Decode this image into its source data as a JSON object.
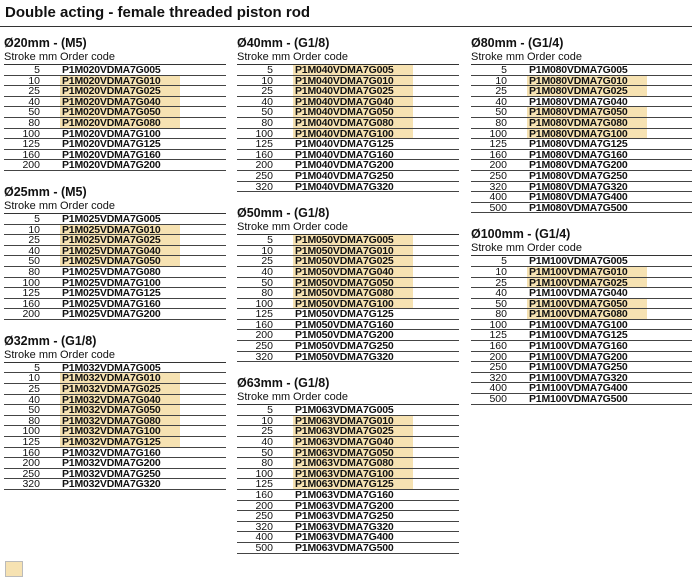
{
  "title": "Double acting - female threaded piston rod",
  "stroke_header": "Stroke mm",
  "code_header": "Order code",
  "columns": [
    {
      "sections": [
        {
          "heading": "Ø20mm - (M5)",
          "rows": [
            {
              "stroke": "5",
              "code": "P1M020VDMA7G005",
              "highlight": false
            },
            {
              "stroke": "10",
              "code": "P1M020VDMA7G010",
              "highlight": true
            },
            {
              "stroke": "25",
              "code": "P1M020VDMA7G025",
              "highlight": true
            },
            {
              "stroke": "40",
              "code": "P1M020VDMA7G040",
              "highlight": true
            },
            {
              "stroke": "50",
              "code": "P1M020VDMA7G050",
              "highlight": true
            },
            {
              "stroke": "80",
              "code": "P1M020VDMA7G080",
              "highlight": true
            },
            {
              "stroke": "100",
              "code": "P1M020VDMA7G100",
              "highlight": false
            },
            {
              "stroke": "125",
              "code": "P1M020VDMA7G125",
              "highlight": false
            },
            {
              "stroke": "160",
              "code": "P1M020VDMA7G160",
              "highlight": false
            },
            {
              "stroke": "200",
              "code": "P1M020VDMA7G200",
              "highlight": false
            }
          ]
        },
        {
          "heading": "Ø25mm - (M5)",
          "rows": [
            {
              "stroke": "5",
              "code": "P1M025VDMA7G005",
              "highlight": false
            },
            {
              "stroke": "10",
              "code": "P1M025VDMA7G010",
              "highlight": true
            },
            {
              "stroke": "25",
              "code": "P1M025VDMA7G025",
              "highlight": true
            },
            {
              "stroke": "40",
              "code": "P1M025VDMA7G040",
              "highlight": true
            },
            {
              "stroke": "50",
              "code": "P1M025VDMA7G050",
              "highlight": true
            },
            {
              "stroke": "80",
              "code": "P1M025VDMA7G080",
              "highlight": false
            },
            {
              "stroke": "100",
              "code": "P1M025VDMA7G100",
              "highlight": false
            },
            {
              "stroke": "125",
              "code": "P1M025VDMA7G125",
              "highlight": false
            },
            {
              "stroke": "160",
              "code": "P1M025VDMA7G160",
              "highlight": false
            },
            {
              "stroke": "200",
              "code": "P1M025VDMA7G200",
              "highlight": false
            }
          ]
        },
        {
          "heading": "Ø32mm - (G1/8)",
          "rows": [
            {
              "stroke": "5",
              "code": "P1M032VDMA7G005",
              "highlight": false
            },
            {
              "stroke": "10",
              "code": "P1M032VDMA7G010",
              "highlight": true
            },
            {
              "stroke": "25",
              "code": "P1M032VDMA7G025",
              "highlight": true
            },
            {
              "stroke": "40",
              "code": "P1M032VDMA7G040",
              "highlight": true
            },
            {
              "stroke": "50",
              "code": "P1M032VDMA7G050",
              "highlight": true
            },
            {
              "stroke": "80",
              "code": "P1M032VDMA7G080",
              "highlight": true
            },
            {
              "stroke": "100",
              "code": "P1M032VDMA7G100",
              "highlight": true
            },
            {
              "stroke": "125",
              "code": "P1M032VDMA7G125",
              "highlight": true
            },
            {
              "stroke": "160",
              "code": "P1M032VDMA7G160",
              "highlight": false
            },
            {
              "stroke": "200",
              "code": "P1M032VDMA7G200",
              "highlight": false
            },
            {
              "stroke": "250",
              "code": "P1M032VDMA7G250",
              "highlight": false
            },
            {
              "stroke": "320",
              "code": "P1M032VDMA7G320",
              "highlight": false
            }
          ]
        }
      ]
    },
    {
      "sections": [
        {
          "heading": "Ø40mm - (G1/8)",
          "rows": [
            {
              "stroke": "5",
              "code": "P1M040VDMA7G005",
              "highlight": true
            },
            {
              "stroke": "10",
              "code": "P1M040VDMA7G010",
              "highlight": true
            },
            {
              "stroke": "25",
              "code": "P1M040VDMA7G025",
              "highlight": true
            },
            {
              "stroke": "40",
              "code": "P1M040VDMA7G040",
              "highlight": true
            },
            {
              "stroke": "50",
              "code": "P1M040VDMA7G050",
              "highlight": true
            },
            {
              "stroke": "80",
              "code": "P1M040VDMA7G080",
              "highlight": true
            },
            {
              "stroke": "100",
              "code": "P1M040VDMA7G100",
              "highlight": true
            },
            {
              "stroke": "125",
              "code": "P1M040VDMA7G125",
              "highlight": false
            },
            {
              "stroke": "160",
              "code": "P1M040VDMA7G160",
              "highlight": false
            },
            {
              "stroke": "200",
              "code": "P1M040VDMA7G200",
              "highlight": false
            },
            {
              "stroke": "250",
              "code": "P1M040VDMA7G250",
              "highlight": false
            },
            {
              "stroke": "320",
              "code": "P1M040VDMA7G320",
              "highlight": false
            }
          ]
        },
        {
          "heading": "Ø50mm - (G1/8)",
          "rows": [
            {
              "stroke": "5",
              "code": "P1M050VDMA7G005",
              "highlight": true
            },
            {
              "stroke": "10",
              "code": "P1M050VDMA7G010",
              "highlight": true
            },
            {
              "stroke": "25",
              "code": "P1M050VDMA7G025",
              "highlight": true
            },
            {
              "stroke": "40",
              "code": "P1M050VDMA7G040",
              "highlight": true
            },
            {
              "stroke": "50",
              "code": "P1M050VDMA7G050",
              "highlight": true
            },
            {
              "stroke": "80",
              "code": "P1M050VDMA7G080",
              "highlight": true
            },
            {
              "stroke": "100",
              "code": "P1M050VDMA7G100",
              "highlight": true
            },
            {
              "stroke": "125",
              "code": "P1M050VDMA7G125",
              "highlight": false
            },
            {
              "stroke": "160",
              "code": "P1M050VDMA7G160",
              "highlight": false
            },
            {
              "stroke": "200",
              "code": "P1M050VDMA7G200",
              "highlight": false
            },
            {
              "stroke": "250",
              "code": "P1M050VDMA7G250",
              "highlight": false
            },
            {
              "stroke": "320",
              "code": "P1M050VDMA7G320",
              "highlight": false
            }
          ]
        },
        {
          "heading": "Ø63mm - (G1/8)",
          "rows": [
            {
              "stroke": "5",
              "code": "P1M063VDMA7G005",
              "highlight": false
            },
            {
              "stroke": "10",
              "code": "P1M063VDMA7G010",
              "highlight": true
            },
            {
              "stroke": "25",
              "code": "P1M063VDMA7G025",
              "highlight": true
            },
            {
              "stroke": "40",
              "code": "P1M063VDMA7G040",
              "highlight": true
            },
            {
              "stroke": "50",
              "code": "P1M063VDMA7G050",
              "highlight": true
            },
            {
              "stroke": "80",
              "code": "P1M063VDMA7G080",
              "highlight": true
            },
            {
              "stroke": "100",
              "code": "P1M063VDMA7G100",
              "highlight": true
            },
            {
              "stroke": "125",
              "code": "P1M063VDMA7G125",
              "highlight": true
            },
            {
              "stroke": "160",
              "code": "P1M063VDMA7G160",
              "highlight": false
            },
            {
              "stroke": "200",
              "code": "P1M063VDMA7G200",
              "highlight": false
            },
            {
              "stroke": "250",
              "code": "P1M063VDMA7G250",
              "highlight": false
            },
            {
              "stroke": "320",
              "code": "P1M063VDMA7G320",
              "highlight": false
            },
            {
              "stroke": "400",
              "code": "P1M063VDMA7G400",
              "highlight": false
            },
            {
              "stroke": "500",
              "code": "P1M063VDMA7G500",
              "highlight": false
            }
          ]
        }
      ]
    },
    {
      "sections": [
        {
          "heading": "Ø80mm - (G1/4)",
          "rows": [
            {
              "stroke": "5",
              "code": "P1M080VDMA7G005",
              "highlight": false
            },
            {
              "stroke": "10",
              "code": "P1M080VDMA7G010",
              "highlight": true
            },
            {
              "stroke": "25",
              "code": "P1M080VDMA7G025",
              "highlight": true
            },
            {
              "stroke": "40",
              "code": "P1M080VDMA7G040",
              "highlight": false
            },
            {
              "stroke": "50",
              "code": "P1M080VDMA7G050",
              "highlight": true
            },
            {
              "stroke": "80",
              "code": "P1M080VDMA7G080",
              "highlight": true
            },
            {
              "stroke": "100",
              "code": "P1M080VDMA7G100",
              "highlight": true
            },
            {
              "stroke": "125",
              "code": "P1M080VDMA7G125",
              "highlight": false
            },
            {
              "stroke": "160",
              "code": "P1M080VDMA7G160",
              "highlight": false
            },
            {
              "stroke": "200",
              "code": "P1M080VDMA7G200",
              "highlight": false
            },
            {
              "stroke": "250",
              "code": "P1M080VDMA7G250",
              "highlight": false
            },
            {
              "stroke": "320",
              "code": "P1M080VDMA7G320",
              "highlight": false
            },
            {
              "stroke": "400",
              "code": "P1M080VDMA7G400",
              "highlight": false
            },
            {
              "stroke": "500",
              "code": "P1M080VDMA7G500",
              "highlight": false
            }
          ]
        },
        {
          "heading": "Ø100mm - (G1/4)",
          "rows": [
            {
              "stroke": "5",
              "code": "P1M100VDMA7G005",
              "highlight": false
            },
            {
              "stroke": "10",
              "code": "P1M100VDMA7G010",
              "highlight": true
            },
            {
              "stroke": "25",
              "code": "P1M100VDMA7G025",
              "highlight": true
            },
            {
              "stroke": "40",
              "code": "P1M100VDMA7G040",
              "highlight": false
            },
            {
              "stroke": "50",
              "code": "P1M100VDMA7G050",
              "highlight": true
            },
            {
              "stroke": "80",
              "code": "P1M100VDMA7G080",
              "highlight": true
            },
            {
              "stroke": "100",
              "code": "P1M100VDMA7G100",
              "highlight": false
            },
            {
              "stroke": "125",
              "code": "P1M100VDMA7G125",
              "highlight": false
            },
            {
              "stroke": "160",
              "code": "P1M100VDMA7G160",
              "highlight": false
            },
            {
              "stroke": "200",
              "code": "P1M100VDMA7G200",
              "highlight": false
            },
            {
              "stroke": "250",
              "code": "P1M100VDMA7G250",
              "highlight": false
            },
            {
              "stroke": "320",
              "code": "P1M100VDMA7G320",
              "highlight": false
            },
            {
              "stroke": "400",
              "code": "P1M100VDMA7G400",
              "highlight": false
            },
            {
              "stroke": "500",
              "code": "P1M100VDMA7G500",
              "highlight": false
            }
          ]
        }
      ]
    }
  ]
}
